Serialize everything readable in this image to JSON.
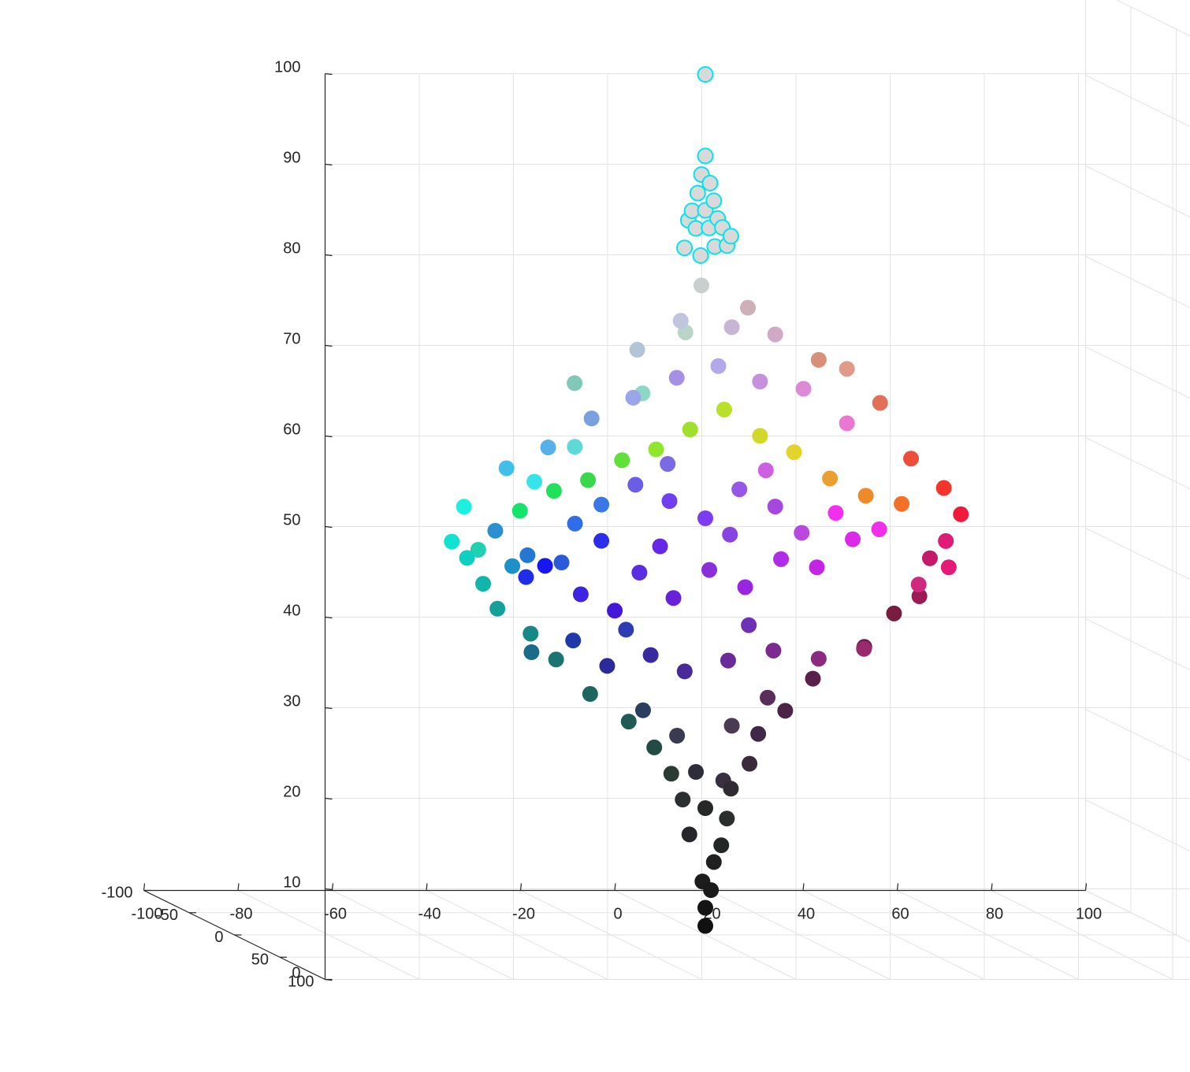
{
  "chart_data": {
    "type": "scatter",
    "title": "",
    "xlabel": "",
    "ylabel": "",
    "zlabel": "",
    "grid": true,
    "view": "3d",
    "xlim": [
      -100,
      100
    ],
    "ylim": [
      -100,
      100
    ],
    "zlim": [
      0,
      100
    ],
    "x_ticks": [
      "-100",
      "-80",
      "-60",
      "-40",
      "-20",
      "0",
      "20",
      "40",
      "60",
      "80",
      "100"
    ],
    "y_ticks": [
      "-100",
      "-50",
      "0",
      "50",
      "100"
    ],
    "z_ticks": [
      "0",
      "10",
      "20",
      "30",
      "40",
      "50",
      "60",
      "70",
      "80",
      "90",
      "100"
    ],
    "highlight_edge_color": "#00e5ee",
    "highlight_fill_color": "#d9d9d9",
    "series": [
      {
        "style": "filled",
        "points": [
          {
            "x": 0,
            "y": 0,
            "z": 1,
            "color": "#111111"
          },
          {
            "x": 0,
            "y": 0,
            "z": 3,
            "color": "#151515"
          },
          {
            "x": 1,
            "y": 1,
            "z": 5,
            "color": "#1a1a1a"
          },
          {
            "x": -1,
            "y": 2,
            "z": 6,
            "color": "#1c1c1c"
          },
          {
            "x": 2,
            "y": -1,
            "z": 8,
            "color": "#202020"
          },
          {
            "x": 3,
            "y": 2,
            "z": 10,
            "color": "#232826"
          },
          {
            "x": -3,
            "y": -2,
            "z": 11,
            "color": "#26262b"
          },
          {
            "x": 4,
            "y": 3,
            "z": 13,
            "color": "#2a2e2c"
          },
          {
            "x": -5,
            "y": 1,
            "z": 15,
            "color": "#2b2f30"
          },
          {
            "x": 6,
            "y": -3,
            "z": 16,
            "color": "#302b33"
          },
          {
            "x": -8,
            "y": 4,
            "z": 18,
            "color": "#2b3a33"
          },
          {
            "x": 9,
            "y": 2,
            "z": 19,
            "color": "#3a2a3c"
          },
          {
            "x": -12,
            "y": 6,
            "z": 21,
            "color": "#244a45"
          },
          {
            "x": 12,
            "y": -4,
            "z": 22,
            "color": "#3f2848"
          },
          {
            "x": -18,
            "y": 9,
            "z": 24,
            "color": "#1f5a55"
          },
          {
            "x": 16,
            "y": 5,
            "z": 25,
            "color": "#4a2346"
          },
          {
            "x": -26,
            "y": 8,
            "z": 27,
            "color": "#1d6660"
          },
          {
            "x": 24,
            "y": -6,
            "z": 28,
            "color": "#59204a"
          },
          {
            "x": -34,
            "y": 12,
            "z": 31,
            "color": "#1a7570"
          },
          {
            "x": 33,
            "y": 4,
            "z": 32,
            "color": "#6a1f45"
          },
          {
            "x": -40,
            "y": 15,
            "z": 34,
            "color": "#178885"
          },
          {
            "x": 42,
            "y": -10,
            "z": 35,
            "color": "#7a1c3f"
          },
          {
            "x": -48,
            "y": 20,
            "z": 37,
            "color": "#16a09a"
          },
          {
            "x": 47,
            "y": -8,
            "z": 37,
            "color": "#9b1c55"
          },
          {
            "x": -52,
            "y": 25,
            "z": 40,
            "color": "#12b5ac"
          },
          {
            "x": 50,
            "y": -12,
            "z": 41,
            "color": "#c21b6a"
          },
          {
            "x": -56,
            "y": 28,
            "z": 43,
            "color": "#0fcfc0"
          },
          {
            "x": 53,
            "y": -10,
            "z": 43,
            "color": "#df1a77"
          },
          {
            "x": -60,
            "y": 32,
            "z": 45,
            "color": "#12e3d0"
          },
          {
            "x": 56,
            "y": -9,
            "z": 46,
            "color": "#f01a3a"
          },
          {
            "x": -58,
            "y": 35,
            "z": 49,
            "color": "#1ef0e0"
          },
          {
            "x": 52,
            "y": -7,
            "z": 49,
            "color": "#f4352a"
          },
          {
            "x": -44,
            "y": 40,
            "z": 52,
            "color": "#36e3ea"
          },
          {
            "x": 46,
            "y": -12,
            "z": 52,
            "color": "#ee4d3a"
          },
          {
            "x": -36,
            "y": 43,
            "z": 56,
            "color": "#5fd8da"
          },
          {
            "x": 40,
            "y": -15,
            "z": 58,
            "color": "#e0705a"
          },
          {
            "x": -22,
            "y": 45,
            "z": 62,
            "color": "#8ed6c8"
          },
          {
            "x": 26,
            "y": -10,
            "z": 63,
            "color": "#d89078"
          },
          {
            "x": -10,
            "y": 30,
            "z": 68,
            "color": "#b9d5c8"
          },
          {
            "x": 10,
            "y": -5,
            "z": 69,
            "color": "#cdb0b8"
          },
          {
            "x": -2,
            "y": 6,
            "z": 72,
            "color": "#c9cfcf"
          },
          {
            "x": -40,
            "y": 10,
            "z": 40,
            "color": "#1f2ee6"
          },
          {
            "x": -35,
            "y": 5,
            "z": 41,
            "color": "#1616f0"
          },
          {
            "x": -28,
            "y": 8,
            "z": 38,
            "color": "#3c24e0"
          },
          {
            "x": -20,
            "y": 4,
            "z": 36,
            "color": "#4416d8"
          },
          {
            "x": -14,
            "y": 0,
            "z": 40,
            "color": "#5a2ee0"
          },
          {
            "x": -6,
            "y": -4,
            "z": 37,
            "color": "#6922d8"
          },
          {
            "x": 2,
            "y": -6,
            "z": 40,
            "color": "#8a2fd8"
          },
          {
            "x": 10,
            "y": -8,
            "z": 38,
            "color": "#9826e0"
          },
          {
            "x": 18,
            "y": -10,
            "z": 41,
            "color": "#b02ce8"
          },
          {
            "x": 26,
            "y": -12,
            "z": 40,
            "color": "#c424e6"
          },
          {
            "x": 34,
            "y": -14,
            "z": 43,
            "color": "#dc28e8"
          },
          {
            "x": 40,
            "y": -16,
            "z": 44,
            "color": "#ef30e8"
          },
          {
            "x": 30,
            "y": -12,
            "z": 46,
            "color": "#f030ee"
          },
          {
            "x": -30,
            "y": 12,
            "z": 46,
            "color": "#2f6ee8"
          },
          {
            "x": -24,
            "y": 10,
            "z": 48,
            "color": "#3a78e6"
          },
          {
            "x": -16,
            "y": 6,
            "z": 50,
            "color": "#6a5de6"
          },
          {
            "x": -8,
            "y": 2,
            "z": 48,
            "color": "#7040f0"
          },
          {
            "x": 0,
            "y": 0,
            "z": 46,
            "color": "#7d3cf0"
          },
          {
            "x": 8,
            "y": -4,
            "z": 49,
            "color": "#9656e6"
          },
          {
            "x": 16,
            "y": -6,
            "z": 47,
            "color": "#a648e0"
          },
          {
            "x": -12,
            "y": 8,
            "z": 54,
            "color": "#8fe62a"
          },
          {
            "x": -4,
            "y": 4,
            "z": 56,
            "color": "#9fe02e"
          },
          {
            "x": 4,
            "y": 0,
            "z": 58,
            "color": "#b9e02a"
          },
          {
            "x": 12,
            "y": -2,
            "z": 55,
            "color": "#d2d82a"
          },
          {
            "x": 20,
            "y": -6,
            "z": 53,
            "color": "#e2d42c"
          },
          {
            "x": -20,
            "y": 12,
            "z": 53,
            "color": "#5fe03a"
          },
          {
            "x": -28,
            "y": 16,
            "z": 51,
            "color": "#3ad64c"
          },
          {
            "x": -36,
            "y": 20,
            "z": 50,
            "color": "#22e05a"
          },
          {
            "x": -44,
            "y": 24,
            "z": 48,
            "color": "#14e46a"
          },
          {
            "x": 28,
            "y": -8,
            "z": 50,
            "color": "#e8a030"
          },
          {
            "x": 36,
            "y": -10,
            "z": 48,
            "color": "#ee8a2a"
          },
          {
            "x": 44,
            "y": -12,
            "z": 47,
            "color": "#f2702a"
          },
          {
            "x": -18,
            "y": 14,
            "z": 60,
            "color": "#9aa6ea"
          },
          {
            "x": -8,
            "y": 10,
            "z": 62,
            "color": "#a590e6"
          },
          {
            "x": 2,
            "y": 4,
            "z": 63,
            "color": "#b4a8ea"
          },
          {
            "x": 12,
            "y": -2,
            "z": 61,
            "color": "#c690dc"
          },
          {
            "x": 22,
            "y": -6,
            "z": 60,
            "color": "#dc8ad6"
          },
          {
            "x": 32,
            "y": -10,
            "z": 56,
            "color": "#e878d2"
          },
          {
            "x": -28,
            "y": 20,
            "z": 58,
            "color": "#7aa0e0"
          },
          {
            "x": -38,
            "y": 24,
            "z": 55,
            "color": "#58b0e8"
          },
          {
            "x": -48,
            "y": 30,
            "z": 53,
            "color": "#40c0e8"
          },
          {
            "x": -50,
            "y": 28,
            "z": 46,
            "color": "#2a90d0"
          },
          {
            "x": -42,
            "y": 22,
            "z": 43,
            "color": "#2478d0"
          },
          {
            "x": -34,
            "y": 18,
            "z": 42,
            "color": "#2a5ad8"
          },
          {
            "x": -30,
            "y": 10,
            "z": 33,
            "color": "#1e3aa8"
          },
          {
            "x": -22,
            "y": 6,
            "z": 30,
            "color": "#2a2a9a"
          },
          {
            "x": -12,
            "y": 2,
            "z": 31,
            "color": "#3a2aa0"
          },
          {
            "x": -4,
            "y": -2,
            "z": 29,
            "color": "#4a2a9a"
          },
          {
            "x": 6,
            "y": -6,
            "z": 30,
            "color": "#6a2a9a"
          },
          {
            "x": 16,
            "y": -8,
            "z": 31,
            "color": "#7c2a92"
          },
          {
            "x": 26,
            "y": -10,
            "z": 30,
            "color": "#8c2a80"
          },
          {
            "x": 36,
            "y": -12,
            "z": 31,
            "color": "#982a70"
          },
          {
            "x": -40,
            "y": 16,
            "z": 32,
            "color": "#1a6a8a"
          },
          {
            "x": -6,
            "y": 0,
            "z": 22,
            "color": "#3a3a50"
          },
          {
            "x": 6,
            "y": -2,
            "z": 23,
            "color": "#4a3a52"
          },
          {
            "x": -14,
            "y": 4,
            "z": 25,
            "color": "#2a3e5e"
          },
          {
            "x": 14,
            "y": -4,
            "z": 26,
            "color": "#5a2e5a"
          },
          {
            "x": -2,
            "y": 0,
            "z": 18,
            "color": "#2e2e3a"
          },
          {
            "x": 4,
            "y": -1,
            "z": 17,
            "color": "#383040"
          },
          {
            "x": 0,
            "y": 0,
            "z": 14,
            "color": "#262828"
          },
          {
            "x": -24,
            "y": 10,
            "z": 44,
            "color": "#2a2ee8"
          },
          {
            "x": -10,
            "y": 2,
            "z": 43,
            "color": "#6628e6"
          },
          {
            "x": 6,
            "y": -4,
            "z": 44,
            "color": "#8844e0"
          },
          {
            "x": 22,
            "y": -8,
            "z": 44,
            "color": "#b848e0"
          },
          {
            "x": -46,
            "y": 26,
            "z": 42,
            "color": "#1e90c8"
          },
          {
            "x": 48,
            "y": -14,
            "z": 38,
            "color": "#d02a80"
          },
          {
            "x": -54,
            "y": 30,
            "z": 44,
            "color": "#20d0b0"
          },
          {
            "x": 54,
            "y": -12,
            "z": 40,
            "color": "#e41a78"
          },
          {
            "x": -16,
            "y": 8,
            "z": 65,
            "color": "#b2c4d8"
          },
          {
            "x": 16,
            "y": -6,
            "z": 66,
            "color": "#d2a8c8"
          },
          {
            "x": -6,
            "y": 4,
            "z": 68,
            "color": "#c0c4dc"
          },
          {
            "x": 6,
            "y": -2,
            "z": 67,
            "color": "#c8b4d4"
          },
          {
            "x": -32,
            "y": 22,
            "z": 62,
            "color": "#80c8b8"
          },
          {
            "x": 32,
            "y": -10,
            "z": 62,
            "color": "#e09a8a"
          },
          {
            "x": -18,
            "y": 6,
            "z": 34,
            "color": "#2e3cb4"
          },
          {
            "x": 10,
            "y": -4,
            "z": 34,
            "color": "#6e30b4"
          },
          {
            "x": -8,
            "y": 0,
            "z": 52,
            "color": "#7a6ae4"
          },
          {
            "x": 14,
            "y": -6,
            "z": 51,
            "color": "#cc60e0"
          }
        ]
      },
      {
        "style": "highlight",
        "points": [
          {
            "x": 0,
            "y": 0,
            "z": 95
          },
          {
            "x": 0,
            "y": 0,
            "z": 86
          },
          {
            "x": -1,
            "y": 1,
            "z": 84
          },
          {
            "x": 1,
            "y": 0,
            "z": 83
          },
          {
            "x": -2,
            "y": 2,
            "z": 82
          },
          {
            "x": 2,
            "y": -1,
            "z": 81
          },
          {
            "x": -3,
            "y": 1,
            "z": 80
          },
          {
            "x": 0,
            "y": 0,
            "z": 80
          },
          {
            "x": 3,
            "y": -2,
            "z": 79
          },
          {
            "x": -4,
            "y": 2,
            "z": 79
          },
          {
            "x": -2,
            "y": 0,
            "z": 78
          },
          {
            "x": 1,
            "y": -1,
            "z": 78
          },
          {
            "x": 4,
            "y": -2,
            "z": 78
          },
          {
            "x": 6,
            "y": -3,
            "z": 77
          },
          {
            "x": -5,
            "y": 3,
            "z": 76
          },
          {
            "x": 2,
            "y": 0,
            "z": 76
          },
          {
            "x": 5,
            "y": -2,
            "z": 76
          },
          {
            "x": -1,
            "y": 0,
            "z": 75
          }
        ]
      }
    ]
  }
}
